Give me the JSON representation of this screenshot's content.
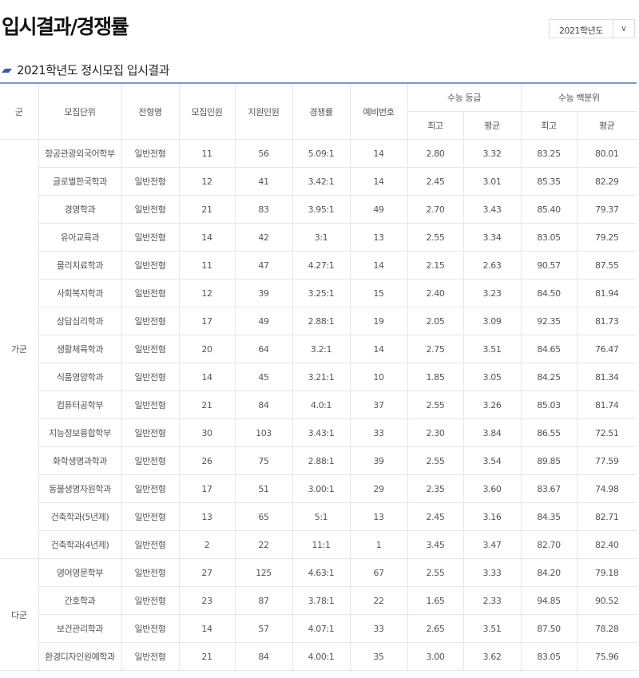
{
  "page_title": "입시결과/경쟁률",
  "year_select": {
    "value": "2021학년도",
    "icon": "chevron-down-icon"
  },
  "section_title": "2021학년도 정시모집 입시결과",
  "accent_color": "#3a5ba8",
  "headers": {
    "group": "군",
    "unit": "모집단위",
    "type": "전형명",
    "quota": "모집인원",
    "applicants": "지원인원",
    "ratio": "경쟁률",
    "waitlist": "예비번호",
    "grade": "수능 등급",
    "percentile": "수능 백분위",
    "grade_best": "최고",
    "grade_avg": "평균",
    "pct_best": "최고",
    "pct_avg": "평균"
  },
  "groups": [
    {
      "name": "가군",
      "rows": [
        [
          "항공관광외국어학부",
          "일반전형",
          "11",
          "56",
          "5.09:1",
          "14",
          "2.80",
          "3.32",
          "83.25",
          "80.01"
        ],
        [
          "글로벌한국학과",
          "일반전형",
          "12",
          "41",
          "3.42:1",
          "14",
          "2.45",
          "3.01",
          "85.35",
          "82.29"
        ],
        [
          "경영학과",
          "일반전형",
          "21",
          "83",
          "3.95:1",
          "49",
          "2.70",
          "3.43",
          "85.40",
          "79.37"
        ],
        [
          "유아교육과",
          "일반전형",
          "14",
          "42",
          "3:1",
          "13",
          "2.55",
          "3.34",
          "83.05",
          "79.25"
        ],
        [
          "물리치료학과",
          "일반전형",
          "11",
          "47",
          "4.27:1",
          "14",
          "2.15",
          "2.63",
          "90.57",
          "87.55"
        ],
        [
          "사회복지학과",
          "일반전형",
          "12",
          "39",
          "3.25:1",
          "15",
          "2.40",
          "3.23",
          "84.50",
          "81.94"
        ],
        [
          "상담심리학과",
          "일반전형",
          "17",
          "49",
          "2.88:1",
          "19",
          "2.05",
          "3.09",
          "92.35",
          "81.73"
        ],
        [
          "생활체육학과",
          "일반전형",
          "20",
          "64",
          "3.2:1",
          "14",
          "2.75",
          "3.51",
          "84.65",
          "76.47"
        ],
        [
          "식품영양학과",
          "일반전형",
          "14",
          "45",
          "3.21:1",
          "10",
          "1.85",
          "3.05",
          "84.25",
          "81.34"
        ],
        [
          "컴퓨터공학부",
          "일반전형",
          "21",
          "84",
          "4.0:1",
          "37",
          "2.55",
          "3.26",
          "85.03",
          "81.74"
        ],
        [
          "지능정보융합학부",
          "일반전형",
          "30",
          "103",
          "3.43:1",
          "33",
          "2.30",
          "3.84",
          "86.55",
          "72.51"
        ],
        [
          "화학생명과학과",
          "일반전형",
          "26",
          "75",
          "2.88:1",
          "39",
          "2.55",
          "3.54",
          "89.85",
          "77.59"
        ],
        [
          "동물생명자원학과",
          "일반전형",
          "17",
          "51",
          "3.00:1",
          "29",
          "2.35",
          "3.60",
          "83.67",
          "74.98"
        ],
        [
          "건축학과(5년제)",
          "일반전형",
          "13",
          "65",
          "5:1",
          "13",
          "2.45",
          "3.16",
          "84.35",
          "82.71"
        ],
        [
          "건축학과(4년제)",
          "일반전형",
          "2",
          "22",
          "11:1",
          "1",
          "3.45",
          "3.47",
          "82.70",
          "82.40"
        ]
      ]
    },
    {
      "name": "다군",
      "rows": [
        [
          "영어영문학부",
          "일반전형",
          "27",
          "125",
          "4.63:1",
          "67",
          "2.55",
          "3.33",
          "84.20",
          "79.18"
        ],
        [
          "간호학과",
          "일반전형",
          "23",
          "87",
          "3.78:1",
          "22",
          "1.65",
          "2.33",
          "94.85",
          "90.52"
        ],
        [
          "보건관리학과",
          "일반전형",
          "14",
          "57",
          "4.07:1",
          "33",
          "2.65",
          "3.51",
          "87.50",
          "78.28"
        ],
        [
          "환경디자인원예학과",
          "일반전형",
          "21",
          "84",
          "4.00:1",
          "35",
          "3.00",
          "3.62",
          "83.05",
          "75.96"
        ]
      ]
    }
  ]
}
